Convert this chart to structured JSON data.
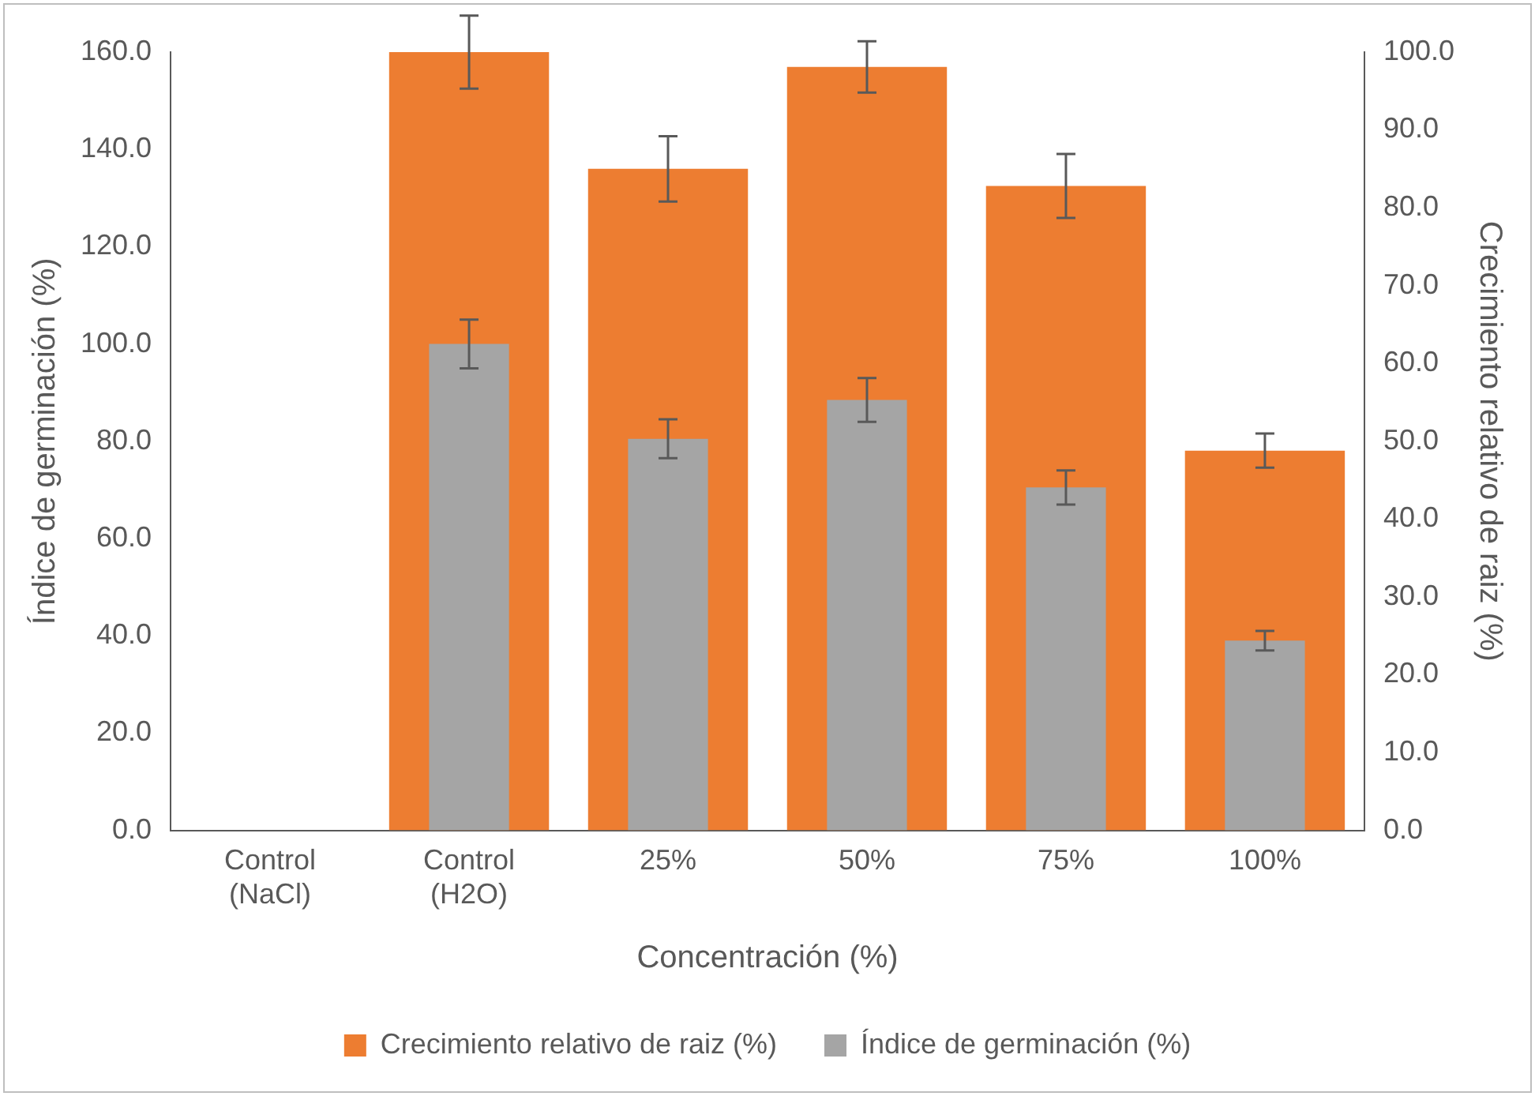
{
  "chart_data": {
    "type": "bar",
    "xlabel": "Concentración (%)",
    "ylabel": "Índice de germinación (%)",
    "y2label": "Crecimiento relativo de raiz (%)",
    "categories": [
      "Control (NaCl)",
      "Control (H2O)",
      "25%",
      "50%",
      "75%",
      "100%"
    ],
    "series": [
      {
        "name": "Crecimiento relativo de raiz (%)",
        "color": "#ed7d31",
        "axis": "y2",
        "values": [
          0,
          100,
          85,
          98.1,
          82.8,
          48.8
        ],
        "errors": [
          null,
          4.7,
          4.2,
          3.3,
          4.1,
          2.2
        ]
      },
      {
        "name": "Índice de germinación (%)",
        "color": "#a5a5a5",
        "values": [
          0,
          100,
          80.5,
          88.5,
          70.5,
          39
        ],
        "errors": [
          null,
          5,
          4,
          4.5,
          3.5,
          2
        ]
      }
    ],
    "ylim": [
      0,
      160
    ],
    "yticks": [
      {
        "value": 0,
        "label": "0.0"
      },
      {
        "value": 20,
        "label": "20.0"
      },
      {
        "value": 40,
        "label": "40.0"
      },
      {
        "value": 60,
        "label": "60.0"
      },
      {
        "value": 80,
        "label": "80.0"
      },
      {
        "value": 100,
        "label": "100.0"
      },
      {
        "value": 120,
        "label": "120.0"
      },
      {
        "value": 140,
        "label": "140.0"
      },
      {
        "value": 160,
        "label": "160.0"
      }
    ],
    "y2lim": [
      0,
      100
    ],
    "y2ticks": [
      {
        "value": 0,
        "label": "0.0"
      },
      {
        "value": 10,
        "label": "10.0"
      },
      {
        "value": 20,
        "label": "20.0"
      },
      {
        "value": 30,
        "label": "30.0"
      },
      {
        "value": 40,
        "label": "40.0"
      },
      {
        "value": 50,
        "label": "50.0"
      },
      {
        "value": 60,
        "label": "60.0"
      },
      {
        "value": 70,
        "label": "70.0"
      },
      {
        "value": 80,
        "label": "80.0"
      },
      {
        "value": 90,
        "label": "90.0"
      },
      {
        "value": 100,
        "label": "100.0"
      }
    ],
    "grid": false,
    "legend": "bottom"
  }
}
